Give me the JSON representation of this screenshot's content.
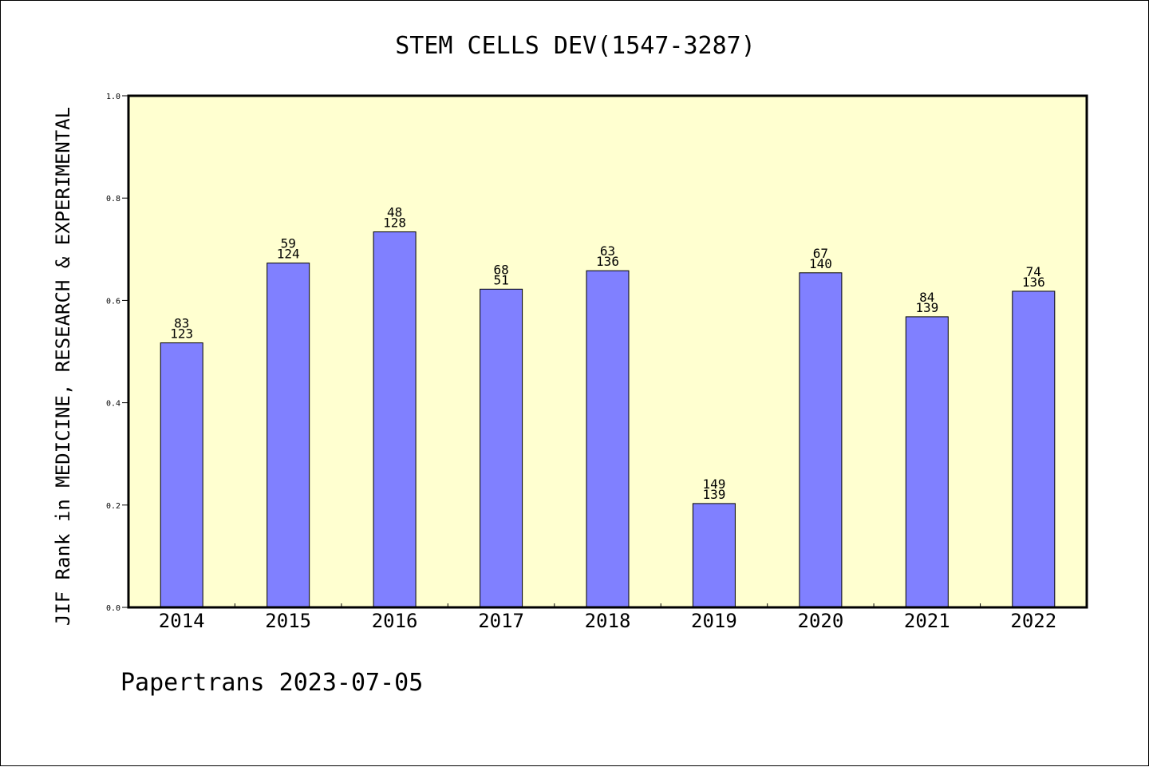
{
  "chart_data": {
    "type": "bar",
    "title": "STEM CELLS DEV(1547-3287)",
    "xlabel": "",
    "ylabel": "JIF Rank in MEDICINE, RESEARCH & EXPERIMENTAL",
    "ylim": [
      0,
      1.0
    ],
    "yticks": [
      "0.0",
      "0.2",
      "0.4",
      "0.6",
      "0.8",
      "1.0"
    ],
    "grid": false,
    "plot_background": "#ffffd0",
    "bar_color": "#8080ff",
    "categories": [
      "2014",
      "2015",
      "2016",
      "2017",
      "2018",
      "2019",
      "2020",
      "2021",
      "2022"
    ],
    "values": [
      0.517,
      0.673,
      0.734,
      0.622,
      0.658,
      0.203,
      0.654,
      0.568,
      0.618
    ],
    "labels_top": [
      "83",
      "59",
      "48",
      "68",
      "63",
      "149",
      "67",
      "84",
      "74"
    ],
    "labels_bottom": [
      "123",
      "124",
      "128",
      "51",
      "136",
      "139",
      "140",
      "139",
      "136"
    ]
  },
  "footer": "Papertrans 2023-07-05"
}
